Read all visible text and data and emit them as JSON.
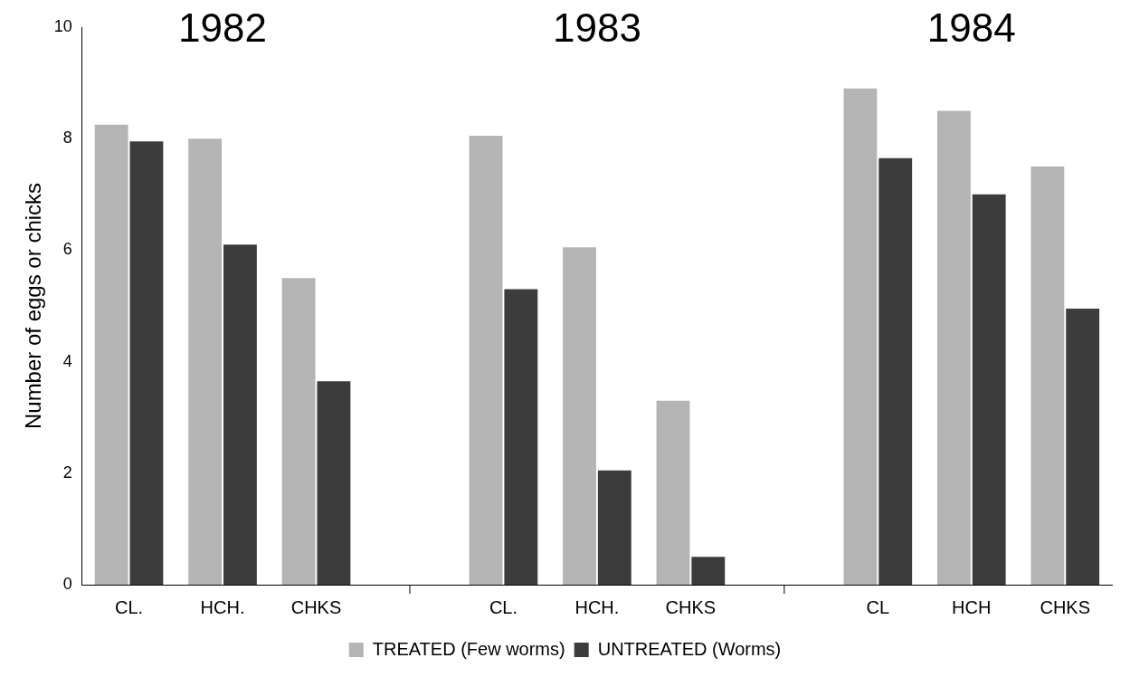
{
  "chart_data": {
    "type": "bar",
    "categories": [
      "CL.",
      "HCH.",
      "CHKS",
      null,
      "CL.",
      "HCH.",
      "CHKS",
      null,
      "CL",
      "HCH",
      "CHKS"
    ],
    "series": [
      {
        "name": "TREATED (Few worms)",
        "color": "#b4b4b4",
        "values": [
          8.25,
          8.0,
          5.5,
          null,
          8.05,
          6.05,
          3.3,
          null,
          8.9,
          8.5,
          7.5
        ]
      },
      {
        "name": "UNTREATED (Worms)",
        "color": "#3c3c3c",
        "values": [
          7.95,
          6.1,
          3.65,
          null,
          5.3,
          2.05,
          0.5,
          null,
          7.65,
          7.0,
          4.95
        ]
      }
    ],
    "ylabel": "Number of eggs or chicks",
    "ylim": [
      0,
      10
    ],
    "yticks": [
      0,
      2,
      4,
      6,
      8,
      10
    ],
    "annotations": [
      "1982",
      "1983",
      "1984"
    ],
    "grid": false,
    "legend": "bottom"
  }
}
